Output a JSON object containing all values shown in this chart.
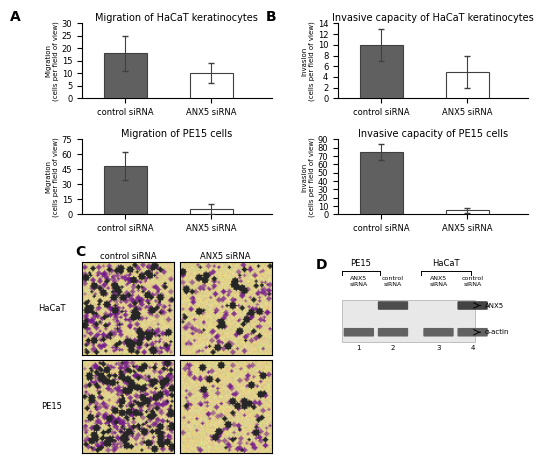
{
  "panel_A": {
    "title_top": "Migration of HaCaT keratinocytes",
    "title_bottom": "Migration of PE15 cells",
    "categories": [
      "control siRNA",
      "ANX5 siRNA"
    ],
    "hacat_values": [
      18,
      10
    ],
    "hacat_errors": [
      7,
      4
    ],
    "hacat_ylim": [
      0,
      30
    ],
    "hacat_yticks": [
      0,
      5,
      10,
      15,
      20,
      25,
      30
    ],
    "pe15_values": [
      48,
      5
    ],
    "pe15_errors": [
      14,
      5
    ],
    "pe15_ylim": [
      0,
      75
    ],
    "pe15_yticks": [
      0,
      15,
      30,
      45,
      60,
      75
    ],
    "bar_colors": [
      "#606060",
      "#ffffff"
    ],
    "bar_edgecolor": "#404040",
    "ylabel": "Migration (cells per field of view)"
  },
  "panel_B": {
    "title_top": "Invasive capacity of HaCaT keratinocytes",
    "title_bottom": "Invasive capacity of PE15 cells",
    "categories": [
      "control siRNA",
      "ANX5 siRNA"
    ],
    "hacat_values": [
      10,
      5
    ],
    "hacat_errors": [
      3,
      3
    ],
    "hacat_ylim": [
      0,
      14
    ],
    "hacat_yticks": [
      0,
      2,
      4,
      6,
      8,
      10,
      12,
      14
    ],
    "pe15_values": [
      75,
      5
    ],
    "pe15_errors": [
      10,
      3
    ],
    "pe15_ylim": [
      0,
      90
    ],
    "pe15_yticks": [
      0,
      10,
      20,
      30,
      40,
      50,
      60,
      70,
      80,
      90
    ],
    "bar_colors": [
      "#606060",
      "#ffffff"
    ],
    "bar_edgecolor": "#404040",
    "ylabel_top": "Invasion (cells per field of view)",
    "ylabel_bottom": "Invasion (cells per field of view)"
  },
  "panel_C": {
    "row_labels": [
      "HaCaT",
      "PE15"
    ],
    "col_labels": [
      "control siRNA",
      "ANX5 siRNA"
    ],
    "label": "C"
  },
  "panel_D": {
    "label": "D",
    "col_labels": [
      "ANX5\nsiRNA",
      "control\nsiRNA",
      "ANX5\nsiRNA",
      "control\nsiRNA"
    ],
    "lane_numbers": [
      "1",
      "2",
      "3",
      "4"
    ],
    "band_labels": [
      "ANX5",
      "α-actin"
    ],
    "group_labels": [
      "PE15",
      "HaCaT"
    ]
  },
  "figure_bg": "#ffffff",
  "label_fontsize": 10,
  "title_fontsize": 7,
  "tick_fontsize": 6,
  "axis_label_fontsize": 5
}
